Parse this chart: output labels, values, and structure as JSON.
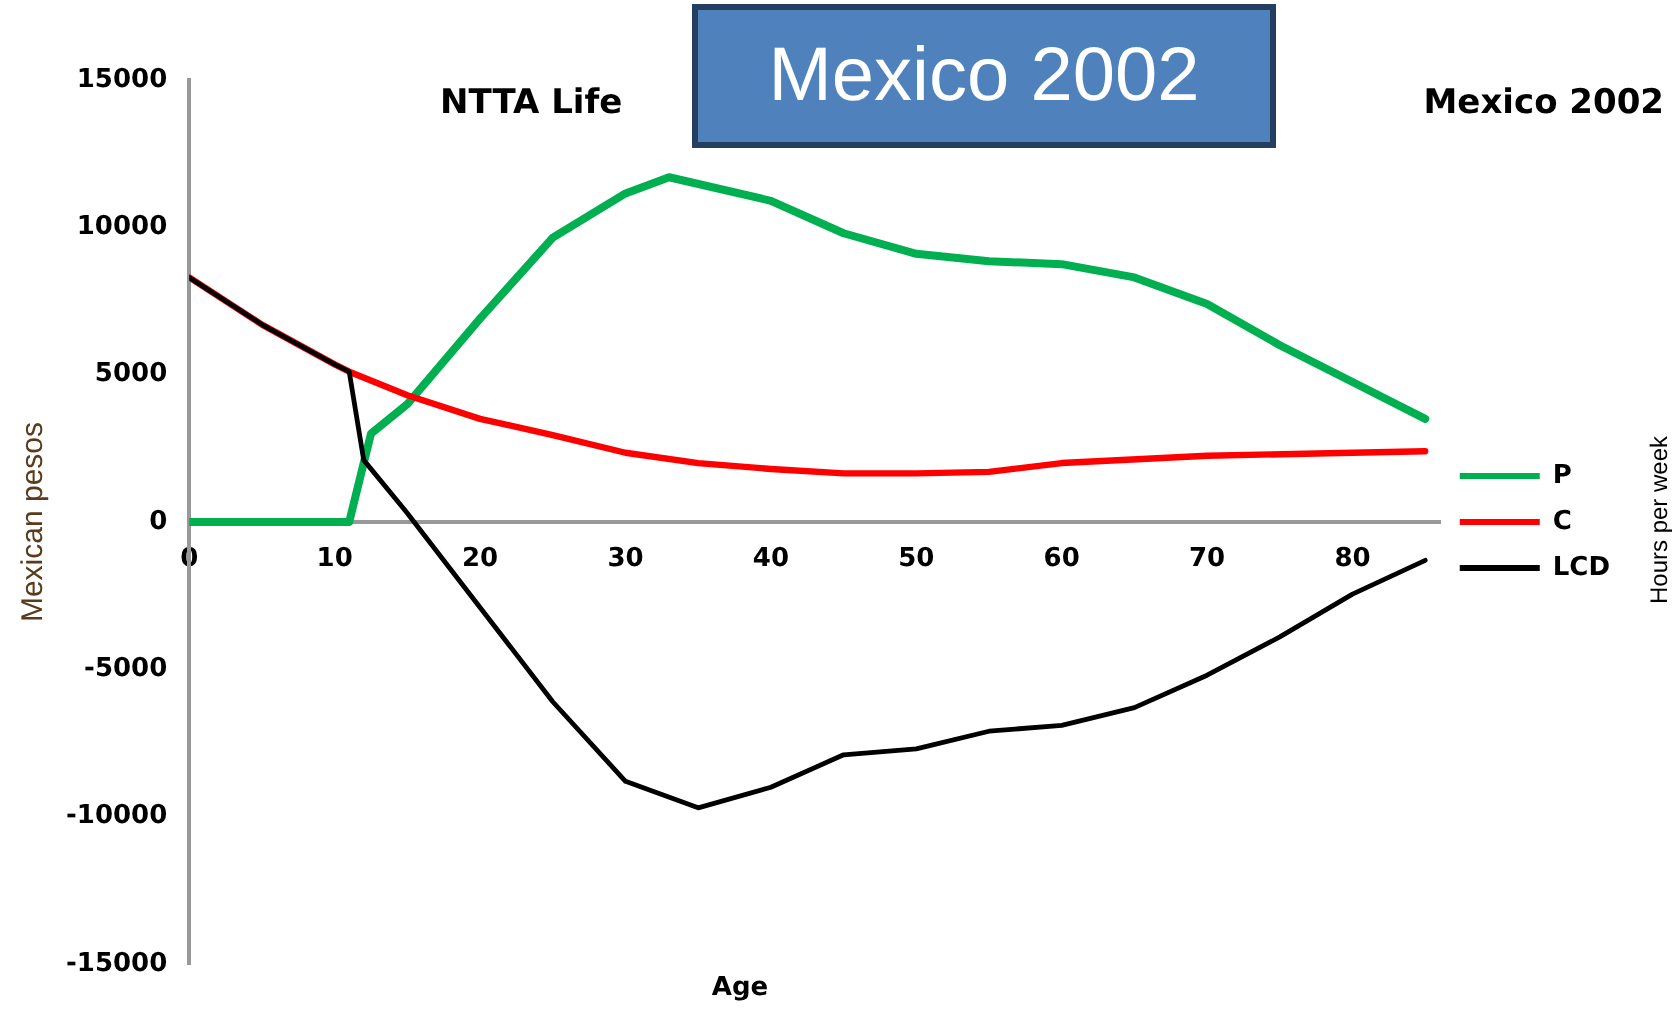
{
  "chart_data": {
    "type": "line",
    "title": "Mexico 2002",
    "subtitle": "NTTA Life",
    "annotations": [
      "Mexico 2002",
      "Hours per week"
    ],
    "xlabel": "Age",
    "ylabel": "Mexican pesos",
    "xlim": [
      0,
      86
    ],
    "xticks": [
      0,
      10,
      20,
      30,
      40,
      50,
      60,
      70,
      80
    ],
    "ylim": [
      -15000,
      15000
    ],
    "yticks": [
      -15000,
      -10000,
      -5000,
      0,
      5000,
      10000,
      15000
    ],
    "grid": false,
    "legend": "right",
    "marker": "none",
    "line_style": "solid",
    "series": [
      {
        "name": "P",
        "color": "#00b050",
        "x": [
          0,
          5,
          11,
          12,
          12.5,
          15,
          20,
          25,
          30,
          33,
          40,
          45,
          50,
          55,
          60,
          65,
          70,
          75,
          80,
          85
        ],
        "values": [
          0,
          0,
          0,
          2000,
          3000,
          4000,
          6900,
          9650,
          11150,
          11700,
          10900,
          9800,
          9100,
          8850,
          8750,
          8300,
          7400,
          6000,
          4750,
          3500
        ]
      },
      {
        "name": "C",
        "color": "#ff0000",
        "x": [
          0,
          5,
          10,
          11,
          15,
          20,
          25,
          30,
          35,
          40,
          45,
          50,
          55,
          60,
          70,
          80,
          85
        ],
        "values": [
          8300,
          6700,
          5350,
          5100,
          4300,
          3500,
          2950,
          2350,
          2000,
          1800,
          1650,
          1650,
          1700,
          2000,
          2250,
          2350,
          2400
        ]
      },
      {
        "name": "LCD",
        "color": "#000000",
        "x": [
          0,
          5,
          10,
          11,
          12,
          15,
          20,
          25,
          30,
          35,
          40,
          45,
          50,
          55,
          60,
          65,
          70,
          75,
          80,
          85
        ],
        "values": [
          8300,
          6700,
          5350,
          5100,
          2100,
          300,
          -2900,
          -6100,
          -8800,
          -9700,
          -9000,
          -7900,
          -7700,
          -7100,
          -6900,
          -6300,
          -5200,
          -3900,
          -2450,
          -1300
        ]
      }
    ]
  }
}
